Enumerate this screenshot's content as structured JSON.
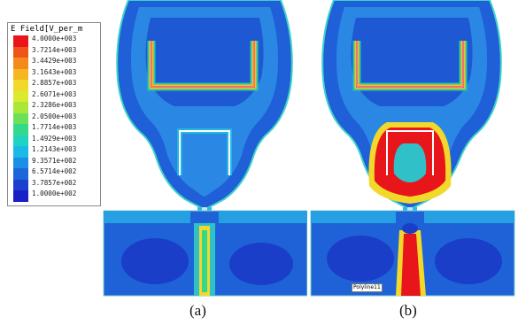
{
  "legend": {
    "title": "E Field[V_per_m",
    "labels": [
      "4.0000e+003",
      "3.7214e+003",
      "3.4429e+003",
      "3.1643e+003",
      "2.8857e+003",
      "2.6071e+003",
      "2.3286e+003",
      "2.0500e+003",
      "1.7714e+003",
      "1.4929e+003",
      "1.2143e+003",
      "9.3571e+002",
      "6.5714e+002",
      "3.7857e+002",
      "1.0000e+002"
    ],
    "colors": [
      "#e8151b",
      "#f0541a",
      "#f38a1c",
      "#f5b61f",
      "#f2d82a",
      "#d9ea2f",
      "#a9e83a",
      "#6de05a",
      "#33d98a",
      "#1ed3bf",
      "#1bb9e8",
      "#1a8fe6",
      "#1c66d9",
      "#1d3fd0",
      "#1a20c8"
    ]
  },
  "captions": {
    "a": "(a)",
    "b": "(b)"
  },
  "overlay_tag": "Polyline11"
}
